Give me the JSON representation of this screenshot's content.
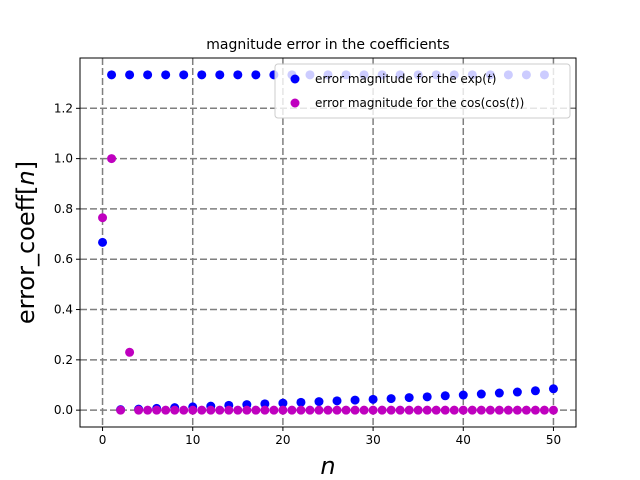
{
  "chart_data": {
    "type": "scatter",
    "title": "magnitude error in the coefficients",
    "xlabel": "n",
    "ylabel": "error_coeff[n]",
    "xlim": [
      -2.5,
      52.5
    ],
    "ylim": [
      -0.067,
      1.4
    ],
    "xticks": [
      0,
      10,
      20,
      30,
      40,
      50
    ],
    "yticks": [
      0.0,
      0.2,
      0.4,
      0.6,
      0.8,
      1.0,
      1.2
    ],
    "xtick_labels": [
      "0",
      "10",
      "20",
      "30",
      "40",
      "50"
    ],
    "ytick_labels": [
      "0.0",
      "0.2",
      "0.4",
      "0.6",
      "0.8",
      "1.0",
      "1.2"
    ],
    "grid": true,
    "legend_position": "top-right",
    "series": [
      {
        "name": "error magnitude for the exp(t)",
        "legend_prefix": "error magnitude for the exp(",
        "legend_var": "t",
        "legend_suffix": ")",
        "color": "#0000ff",
        "x": [
          0,
          1,
          2,
          3,
          4,
          5,
          6,
          7,
          8,
          9,
          10,
          11,
          12,
          13,
          14,
          15,
          16,
          17,
          18,
          19,
          20,
          21,
          22,
          23,
          24,
          25,
          26,
          27,
          28,
          29,
          30,
          31,
          32,
          33,
          34,
          35,
          36,
          37,
          38,
          39,
          40,
          41,
          42,
          43,
          44,
          45,
          46,
          47,
          48,
          49,
          50
        ],
        "y": [
          0.667,
          1.333,
          0.002,
          1.333,
          0.004,
          1.333,
          0.007,
          1.333,
          0.01,
          1.333,
          0.013,
          1.333,
          0.016,
          1.333,
          0.019,
          1.333,
          0.022,
          1.333,
          0.025,
          1.333,
          0.028,
          1.333,
          0.031,
          1.333,
          0.034,
          1.333,
          0.037,
          1.333,
          0.04,
          1.333,
          0.043,
          1.333,
          0.046,
          1.333,
          0.05,
          1.333,
          0.053,
          1.333,
          0.057,
          1.333,
          0.06,
          1.333,
          0.064,
          1.333,
          0.068,
          1.333,
          0.072,
          1.333,
          0.077,
          1.333,
          0.085
        ]
      },
      {
        "name": "error magnitude for the cos(cos(t))",
        "legend_prefix": "error magnitude for the cos(cos(",
        "legend_var": "t",
        "legend_suffix": "))",
        "color": "#bf00bf",
        "x": [
          0,
          1,
          2,
          3,
          4,
          5,
          6,
          7,
          8,
          9,
          10,
          11,
          12,
          13,
          14,
          15,
          16,
          17,
          18,
          19,
          20,
          21,
          22,
          23,
          24,
          25,
          26,
          27,
          28,
          29,
          30,
          31,
          32,
          33,
          34,
          35,
          36,
          37,
          38,
          39,
          40,
          41,
          42,
          43,
          44,
          45,
          46,
          47,
          48,
          49,
          50
        ],
        "y": [
          0.765,
          1.0,
          0.0,
          0.23,
          0.0,
          0.0,
          0.0,
          0.0,
          0.0,
          0.0,
          0.0,
          0.0,
          0.0,
          0.0,
          0.0,
          0.0,
          0.0,
          0.0,
          0.0,
          0.0,
          0.0,
          0.0,
          0.0,
          0.0,
          0.0,
          0.0,
          0.0,
          0.0,
          0.0,
          0.0,
          0.0,
          0.0,
          0.0,
          0.0,
          0.0,
          0.0,
          0.0,
          0.0,
          0.0,
          0.0,
          0.0,
          0.0,
          0.0,
          0.0,
          0.0,
          0.0,
          0.0,
          0.0,
          0.0,
          0.0,
          0.0
        ]
      }
    ]
  }
}
